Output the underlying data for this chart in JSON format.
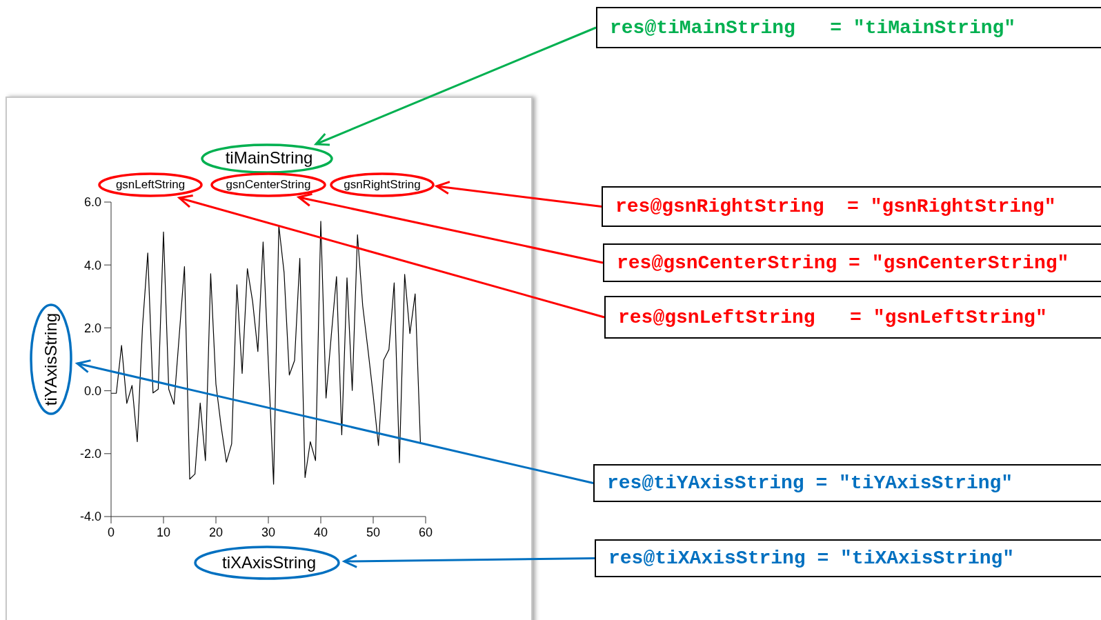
{
  "chart_data": {
    "type": "line",
    "title": "tiMainString",
    "xlabel": "tiXAxisString",
    "ylabel": "tiYAxisString",
    "annotations": [
      "gsnLeftString",
      "gsnCenterString",
      "gsnRightString",
      "res@tiMainString   = \"tiMainString\"",
      "res@gsnRightString  = \"gsnRightString\"",
      "res@gsnCenterString = \"gsnCenterString\"",
      "res@gsnLeftString   = \"gsnLeftString\"",
      "res@tiYAxisString = \"tiYAxisString\"",
      "res@tiXAxisString = \"tiXAxisString\""
    ],
    "x": [
      0,
      1,
      2,
      3,
      4,
      5,
      6,
      7,
      8,
      9,
      10,
      11,
      12,
      13,
      14,
      15,
      16,
      17,
      18,
      19,
      20,
      21,
      22,
      23,
      24,
      25,
      26,
      27,
      28,
      29,
      30,
      31,
      32,
      33,
      34,
      35,
      36,
      37,
      38,
      39,
      40,
      41,
      42,
      43,
      44,
      45,
      46,
      47,
      48,
      49,
      50,
      51,
      52,
      53,
      54,
      55,
      56,
      57,
      58,
      59
    ],
    "series": [
      {
        "color": "#000000",
        "values": [
          -0.08,
          -0.08,
          1.44,
          -0.4,
          0.17,
          -1.62,
          2.04,
          4.38,
          -0.07,
          0.05,
          5.05,
          0.05,
          -0.43,
          1.75,
          3.95,
          -2.81,
          -2.65,
          -0.39,
          -2.22,
          3.72,
          0.21,
          -1.14,
          -2.27,
          -1.69,
          3.37,
          0.55,
          3.88,
          2.84,
          1.25,
          4.73,
          0.88,
          -2.97,
          5.25,
          3.76,
          0.5,
          0.96,
          4.21,
          -2.76,
          -1.62,
          -2.22,
          5.39,
          -0.23,
          1.75,
          3.63,
          -1.4,
          3.59,
          0.01,
          4.96,
          2.7,
          1.31,
          -0.15,
          -1.74,
          0.98,
          1.31,
          3.43,
          -2.29,
          3.7,
          1.82,
          3.08,
          -1.63
        ]
      }
    ],
    "xlim": [
      0,
      60
    ],
    "xticks": [
      0,
      10,
      20,
      30,
      40,
      50,
      60
    ],
    "ylim": [
      -4,
      6
    ],
    "yticks": [
      {
        "value": -4,
        "label": "-4.0"
      },
      {
        "value": -2,
        "label": "-2.0"
      },
      {
        "value": 0,
        "label": "0.0"
      },
      {
        "value": 2,
        "label": "2.0"
      },
      {
        "value": 4,
        "label": "4.0"
      },
      {
        "value": 6,
        "label": "6.0"
      }
    ],
    "grid": false,
    "legend": false,
    "marker": "none",
    "line_style": "solid"
  }
}
